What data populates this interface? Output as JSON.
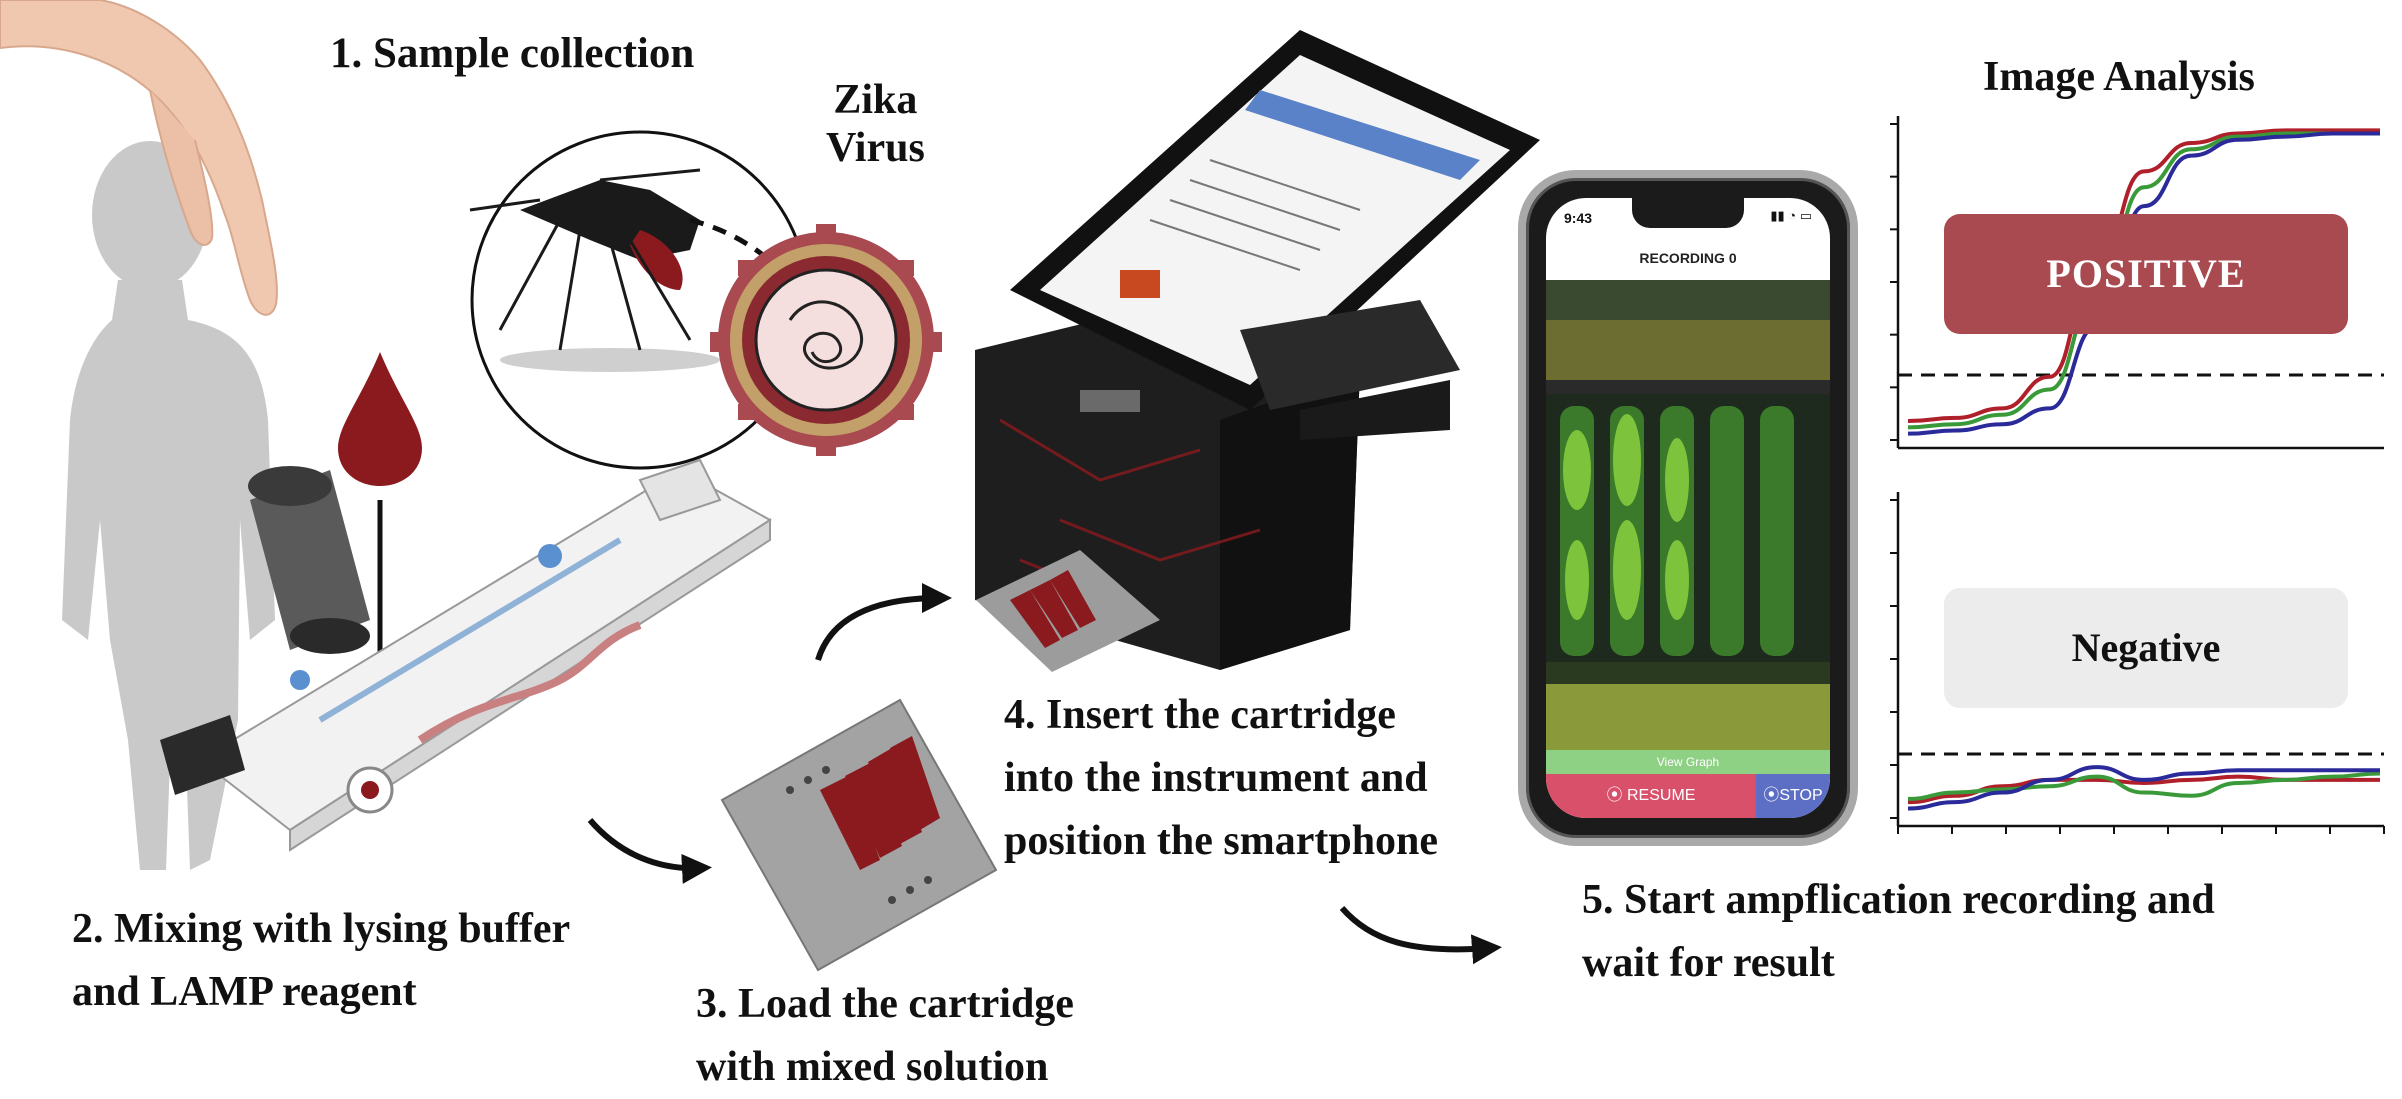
{
  "steps": {
    "sample": "1. Sample collection",
    "virus": "Zika\nVirus",
    "mixing": "2. Mixing with lysing buffer\nand LAMP reagent",
    "load": "3. Load the cartridge\nwith mixed solution",
    "insert": "4. Insert the cartridge\ninto the instrument and\nposition the smartphone",
    "start": "5. Start ampflication recording and\nwait for result"
  },
  "analysis": {
    "title": "Image Analysis",
    "positive_label": "POSITIVE",
    "negative_label": "Negative"
  },
  "phone_app": {
    "time": "9:43",
    "recording_title": "RECORDING 0",
    "view_graph": "View Graph",
    "resume_button": "RESUME",
    "stop_button": "STOP"
  },
  "colors": {
    "blood": "#8a1a1e",
    "positive_box": "#a84a50",
    "negative_box": "#ececec",
    "series_red": "#b0202a",
    "series_green": "#3a9a3a",
    "series_blue": "#2a2a9a"
  },
  "chart_data": [
    {
      "type": "line",
      "result": "positive",
      "series": [
        {
          "color": "red",
          "values": [
            0.06,
            0.07,
            0.1,
            0.2,
            0.55,
            0.85,
            0.94,
            0.97,
            0.98,
            0.98,
            0.98
          ]
        },
        {
          "color": "green",
          "values": [
            0.04,
            0.05,
            0.08,
            0.16,
            0.46,
            0.8,
            0.92,
            0.96,
            0.97,
            0.97,
            0.97
          ]
        },
        {
          "color": "blue",
          "values": [
            0.02,
            0.03,
            0.05,
            0.1,
            0.36,
            0.74,
            0.9,
            0.95,
            0.96,
            0.97,
            0.97
          ]
        }
      ],
      "threshold": 0.22,
      "ylim": [
        0,
        1
      ],
      "grid": false
    },
    {
      "type": "line",
      "result": "negative",
      "series": [
        {
          "color": "red",
          "values": [
            0.05,
            0.07,
            0.1,
            0.12,
            0.12,
            0.11,
            0.12,
            0.13,
            0.12,
            0.12,
            0.12
          ]
        },
        {
          "color": "green",
          "values": [
            0.06,
            0.08,
            0.09,
            0.1,
            0.13,
            0.08,
            0.07,
            0.11,
            0.12,
            0.13,
            0.14
          ]
        },
        {
          "color": "blue",
          "values": [
            0.03,
            0.05,
            0.08,
            0.12,
            0.16,
            0.12,
            0.14,
            0.15,
            0.15,
            0.15,
            0.15
          ]
        }
      ],
      "threshold": 0.24,
      "ylim": [
        0,
        1
      ],
      "grid": false
    }
  ]
}
